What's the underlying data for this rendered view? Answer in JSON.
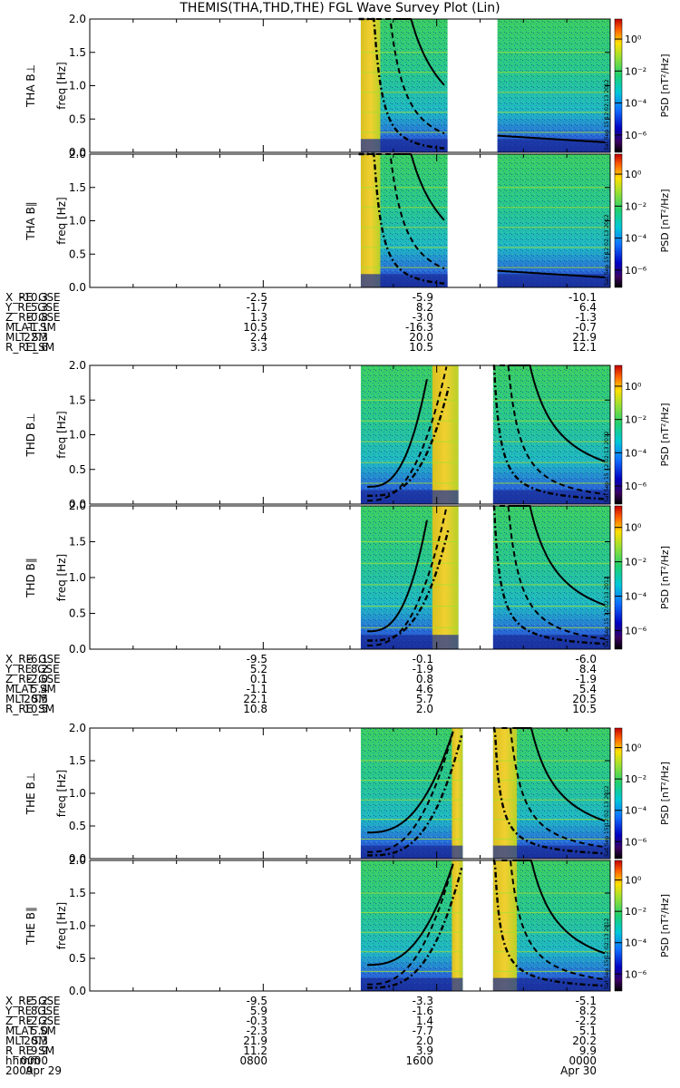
{
  "title": "THEMIS(THA,THD,THE) FGL Wave Survey Plot (Lin)",
  "colorbar": {
    "label": "PSD [nT²/Hz]",
    "ticks": [
      "10⁰",
      "10⁻²",
      "10⁻⁴",
      "10⁻⁶"
    ]
  },
  "y_axis": {
    "label": "freq [Hz]",
    "ticks": [
      "0.0",
      "0.5",
      "1.0",
      "1.5",
      "2.0"
    ],
    "ylim": [
      0,
      2
    ]
  },
  "datestamp": "Sat Sep 15 12:02:13 2012",
  "chart_data": [
    {
      "type": "heatmap",
      "probe": "THA",
      "panel": "THA B⊥",
      "xlim": [
        0,
        24
      ],
      "ylim": [
        0,
        2
      ],
      "gap_hours": [
        16.5,
        18.8
      ],
      "data_start_hours": [
        12.5
      ],
      "band_hours": [
        [
          12.5,
          13.4
        ]
      ]
    },
    {
      "type": "heatmap",
      "probe": "THA",
      "panel": "THA B∥",
      "xlim": [
        0,
        24
      ],
      "ylim": [
        0,
        2
      ],
      "gap_hours": [
        16.5,
        18.8
      ],
      "data_start_hours": [
        12.5
      ],
      "band_hours": [
        [
          12.5,
          13.4
        ]
      ]
    },
    {
      "type": "heatmap",
      "probe": "THD",
      "panel": "THD B⊥",
      "xlim": [
        0,
        24
      ],
      "ylim": [
        0,
        2
      ],
      "gap_hours": [
        17.0,
        18.6
      ],
      "data_start_hours": [
        12.5
      ],
      "band_hours": [
        [
          15.8,
          17.0
        ]
      ]
    },
    {
      "type": "heatmap",
      "probe": "THD",
      "panel": "THD B∥",
      "xlim": [
        0,
        24
      ],
      "ylim": [
        0,
        2
      ],
      "gap_hours": [
        17.0,
        18.6
      ],
      "data_start_hours": [
        12.5
      ],
      "band_hours": [
        [
          15.8,
          17.0
        ]
      ]
    },
    {
      "type": "heatmap",
      "probe": "THE",
      "panel": "THE B⊥",
      "xlim": [
        0,
        24
      ],
      "ylim": [
        0,
        2
      ],
      "gap_hours": [
        17.2,
        18.6
      ],
      "data_start_hours": [
        12.5
      ],
      "band_hours": [
        [
          16.7,
          17.2
        ],
        [
          18.6,
          19.7
        ]
      ]
    },
    {
      "type": "heatmap",
      "probe": "THE",
      "panel": "THE B∥",
      "xlim": [
        0,
        24
      ],
      "ylim": [
        0,
        2
      ],
      "gap_hours": [
        17.2,
        18.6
      ],
      "data_start_hours": [
        12.5
      ],
      "band_hours": [
        [
          16.7,
          17.2
        ],
        [
          18.6,
          19.7
        ]
      ]
    }
  ],
  "ephemeris": [
    {
      "probe": "THA",
      "rows": [
        {
          "label": "X_RE_GSE",
          "values": [
            "-10.3",
            "-2.5",
            "-5.9",
            "-10.1"
          ]
        },
        {
          "label": "Y_RE_GSE",
          "values": [
            "5.3",
            "-1.7",
            "8.2",
            "6.4"
          ]
        },
        {
          "label": "Z_RE_GSE",
          "values": [
            "-0.8",
            "1.3",
            "-3.0",
            "-1.3"
          ]
        },
        {
          "label": "MLAT_SM",
          "values": [
            "-1.1",
            "10.5",
            "-16.3",
            "-0.7"
          ]
        },
        {
          "label": "MLT_SM",
          "values": [
            "22.3",
            "2.4",
            "20.0",
            "21.9"
          ]
        },
        {
          "label": "R_RE_SM",
          "values": [
            "11.6",
            "3.3",
            "10.5",
            "12.1"
          ]
        }
      ]
    },
    {
      "probe": "THD",
      "rows": [
        {
          "label": "X_RE_GSE",
          "values": [
            "-6.1",
            "-9.5",
            "-0.1",
            "-6.0"
          ]
        },
        {
          "label": "Y_RE_GSE",
          "values": [
            "8.2",
            "5.2",
            "-1.9",
            "8.4"
          ]
        },
        {
          "label": "Z_RE_GSE",
          "values": [
            "-2.0",
            "0.1",
            "0.8",
            "-1.9"
          ]
        },
        {
          "label": "MLAT_SM",
          "values": [
            "5.4",
            "-1.1",
            "4.6",
            "5.4"
          ]
        },
        {
          "label": "MLT_SM",
          "values": [
            "20.5",
            "22.1",
            "5.7",
            "20.5"
          ]
        },
        {
          "label": "R_RE_SM",
          "values": [
            "10.5",
            "10.8",
            "2.0",
            "10.5"
          ]
        }
      ]
    },
    {
      "probe": "THE",
      "rows": [
        {
          "label": "X_RE_GSE",
          "values": [
            "-5.2",
            "-9.5",
            "-3.3",
            "-5.1"
          ]
        },
        {
          "label": "Y_RE_GSE",
          "values": [
            "8.1",
            "5.9",
            "-1.6",
            "8.2"
          ]
        },
        {
          "label": "Z_RE_GSE",
          "values": [
            "-2.2",
            "-0.3",
            "1.4",
            "-2.2"
          ]
        },
        {
          "label": "MLAT_SM",
          "values": [
            "5.0",
            "-2.3",
            "-7.7",
            "5.1"
          ]
        },
        {
          "label": "MLT_SM",
          "values": [
            "20.3",
            "21.9",
            "2.0",
            "20.2"
          ]
        },
        {
          "label": "R_RE_SM",
          "values": [
            "9.9",
            "11.2",
            "3.9",
            "9.9"
          ]
        },
        {
          "label": "hhmm",
          "values": [
            "0000",
            "0800",
            "1600",
            "0000"
          ]
        }
      ]
    }
  ],
  "date_row": {
    "left": "2009",
    "left2": "Apr 29",
    "right": "Apr 30"
  }
}
